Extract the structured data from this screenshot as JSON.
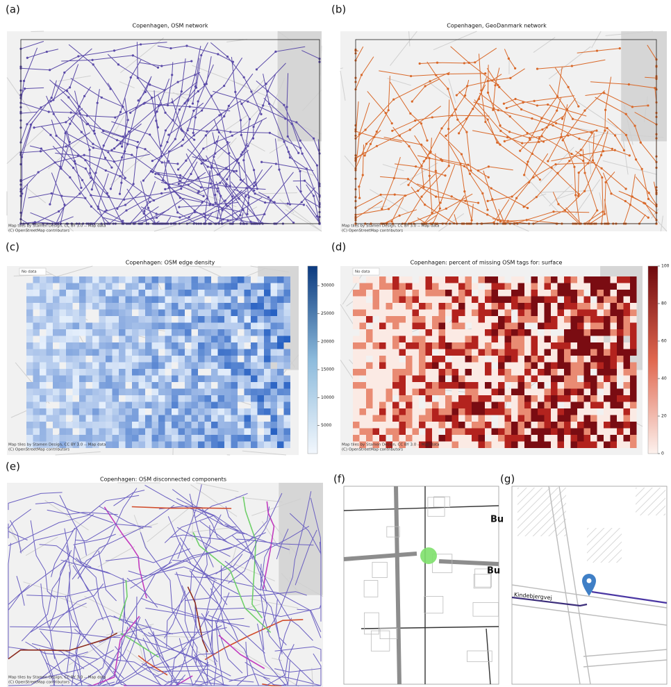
{
  "panels": [
    {
      "label": "(a)",
      "title": "Copenhagen, OSM network",
      "attribution": [
        "Map tiles by Stamen Design, CC BY 3.0 -- Map data",
        "(C) OpenStreetMap contributors"
      ]
    },
    {
      "label": "(b)",
      "title": "Copenhagen, GeoDanmark network",
      "attribution": [
        "Map tiles by Stamen Design, CC BY 3.0 -- Map data",
        "(C) OpenStreetMap contributors"
      ]
    },
    {
      "label": "(c)",
      "title": "Copenhagen: OSM edge density",
      "no_data": "No data",
      "attribution": [
        "Map tiles by Stamen Design, CC BY 3.0 -- Map data",
        "(C) OpenStreetMap contributors"
      ],
      "colorbar": {
        "lim": [
          0,
          33500
        ],
        "ticks": [
          5000,
          10000,
          15000,
          20000,
          25000,
          30000
        ]
      }
    },
    {
      "label": "(d)",
      "title": "Copenhagen: percent of missing OSM tags for: surface",
      "no_data": "No data",
      "attribution": [
        "Map tiles by Stamen Design, CC BY 3.0 -- Map data",
        "(C) OpenStreetMap contributors"
      ],
      "colorbar": {
        "lim": [
          0,
          100
        ],
        "ticks": [
          0,
          20,
          40,
          60,
          80,
          100
        ]
      }
    },
    {
      "label": "(e)",
      "title": "Copenhagen: OSM disconnected components",
      "attribution": [
        "Map tiles by Stamen Design, CC BY 3.0 -- Map data",
        "(C) OpenStreetMap contributors"
      ]
    },
    {
      "label": "(f)",
      "map_labels": [
        "Bu",
        "Bu"
      ]
    },
    {
      "label": "(g)",
      "street": "Kindebjergvej"
    }
  ]
}
